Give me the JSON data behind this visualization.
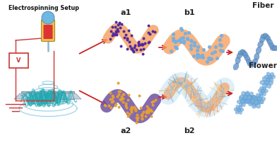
{
  "title": "Electrospinning Setup",
  "labels": {
    "a1": "a1",
    "b1": "b1",
    "a2": "a2",
    "b2": "b2",
    "fiber": "Fiber",
    "flower": "Flower"
  },
  "colors": {
    "background": "#ffffff",
    "arrow_red": "#cc2222",
    "fiber_orange": "#f5a060",
    "fiber_purple": "#7050a0",
    "fiber_blue_light": "#a8cce8",
    "dot_purple": "#5028a0",
    "dot_orange": "#e8a030",
    "dot_blue": "#78b0e0",
    "crystal_blue": "#6898cc",
    "electrospun_teal": "#30b8b8",
    "setup_red": "#cc3333",
    "platform_gray": "#a0b8c8",
    "platform_dark": "#8090a0",
    "title_color": "#111111"
  }
}
